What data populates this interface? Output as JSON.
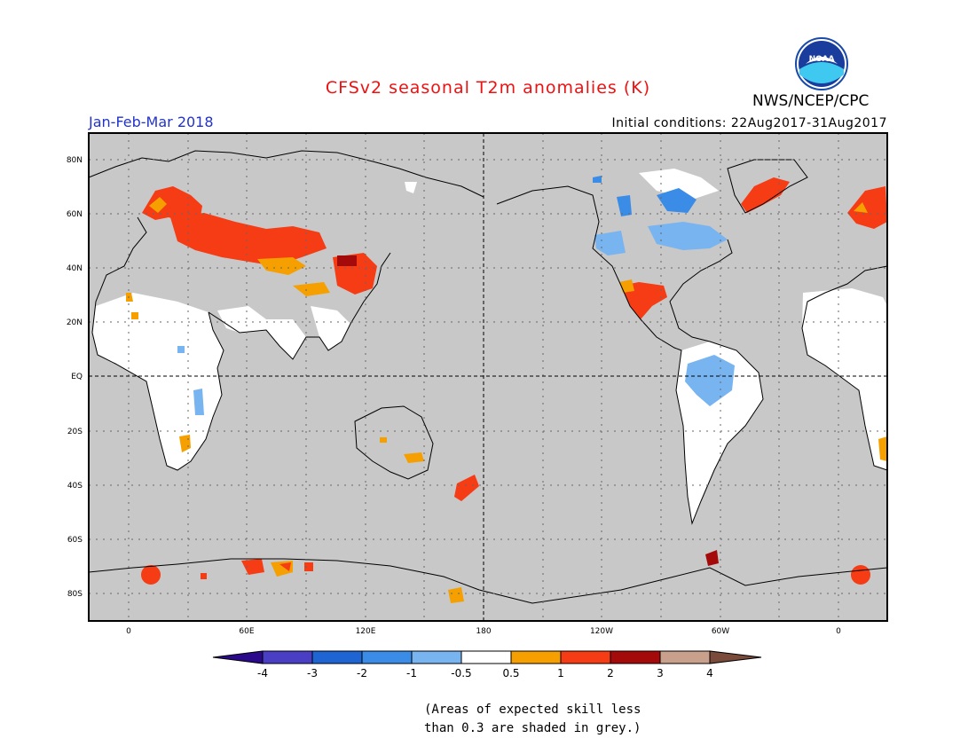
{
  "header": {
    "title": "CFSv2 seasonal T2m anomalies (K)",
    "agency": "NWS/NCEP/CPC",
    "season": "Jan-Feb-Mar 2018",
    "initial_conditions": "Initial conditions: 22Aug2017-31Aug2017",
    "logo_text": "NOAA"
  },
  "map": {
    "lat_labels": [
      "80N",
      "60N",
      "40N",
      "20N",
      "EQ",
      "20S",
      "40S",
      "60S",
      "80S"
    ],
    "lon_labels": [
      "0",
      "60E",
      "120E",
      "180",
      "120W",
      "60W",
      "0"
    ],
    "colors": {
      "grey_mask": "#c8c8c8",
      "ocean_grey": "#c8c8c8",
      "land_white": "#ffffff"
    }
  },
  "colorbar": {
    "labels": [
      "-4",
      "-3",
      "-2",
      "-1",
      "-0.5",
      "0.5",
      "1",
      "2",
      "3",
      "4"
    ],
    "colors": [
      "#2a0a8a",
      "#4a3fc4",
      "#1e64d2",
      "#3a8ce6",
      "#78b4f0",
      "#ffffff",
      "#f5a000",
      "#f53c14",
      "#a50a0a",
      "#c8a08c",
      "#7a4a3a"
    ]
  },
  "footnote": {
    "line1": "(Areas of expected skill less",
    "line2": "than 0.3 are shaded in grey.)"
  }
}
